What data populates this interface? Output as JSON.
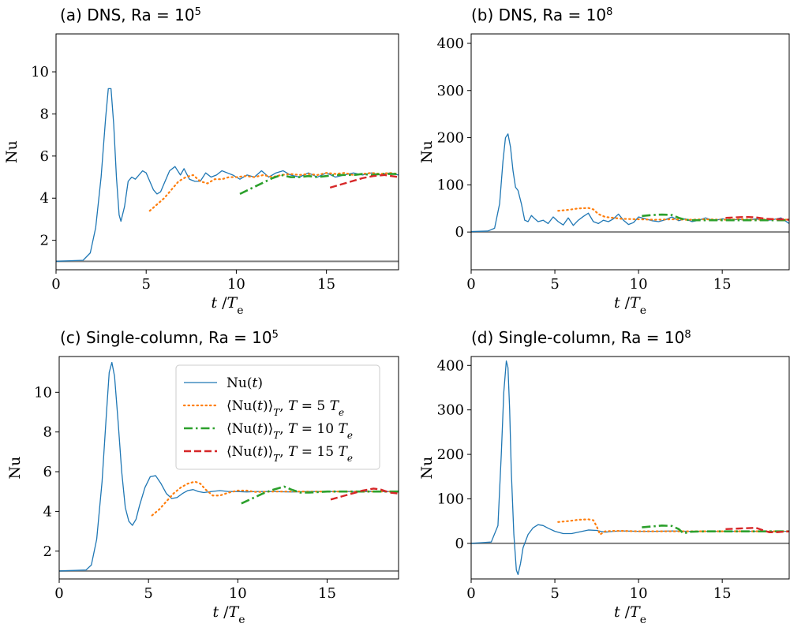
{
  "chart_data": [
    {
      "panel": "a",
      "type": "line",
      "title": "(a) DNS, Ra = 10",
      "title_sup": "5",
      "xlabel_main": "t",
      "xlabel_unit": "/T",
      "xlabel_sub": "e",
      "ylabel": "Nu",
      "xlim": [
        0,
        19
      ],
      "ylim": [
        0.6,
        11.8
      ],
      "xticks": [
        0,
        5,
        10,
        15
      ],
      "yticks": [
        2,
        4,
        6,
        8,
        10
      ],
      "baseline": 1,
      "series": [
        {
          "key": "nu",
          "color": "#1f77b4",
          "style": "solid",
          "x": [
            0,
            1.5,
            1.9,
            2.2,
            2.5,
            2.75,
            2.9,
            3.05,
            3.2,
            3.35,
            3.5,
            3.6,
            3.8,
            4.0,
            4.2,
            4.4,
            4.6,
            4.8,
            5.0,
            5.2,
            5.4,
            5.6,
            5.8,
            6.0,
            6.3,
            6.6,
            6.9,
            7.1,
            7.4,
            7.7,
            8.0,
            8.3,
            8.6,
            8.9,
            9.2,
            9.5,
            9.8,
            10.2,
            10.6,
            11.0,
            11.4,
            11.8,
            12.2,
            12.6,
            13.0,
            13.5,
            14.0,
            14.5,
            15.0,
            15.5,
            16.0,
            16.5,
            17.0,
            17.5,
            18.0,
            18.5,
            19.0
          ],
          "y": [
            1.0,
            1.05,
            1.4,
            2.6,
            5.0,
            7.8,
            9.2,
            9.2,
            7.5,
            5.0,
            3.2,
            2.9,
            3.6,
            4.8,
            5.0,
            4.9,
            5.1,
            5.3,
            5.2,
            4.8,
            4.4,
            4.2,
            4.3,
            4.7,
            5.3,
            5.5,
            5.1,
            5.4,
            4.9,
            4.8,
            4.8,
            5.2,
            5.0,
            5.1,
            5.3,
            5.2,
            5.1,
            4.9,
            5.1,
            5.0,
            5.3,
            5.0,
            5.2,
            5.3,
            5.1,
            5.0,
            5.2,
            5.0,
            5.2,
            5.0,
            5.1,
            5.2,
            5.1,
            5.2,
            5.1,
            5.2,
            5.1
          ]
        },
        {
          "key": "avg5",
          "color": "#ff7f0e",
          "style": "dotted",
          "x": [
            5.2,
            5.6,
            6.0,
            6.4,
            6.8,
            7.2,
            7.6,
            8.0,
            8.4,
            8.8,
            9.2,
            9.6,
            10.0,
            10.5,
            11.0,
            11.5,
            12.0,
            12.5,
            13.0,
            13.5,
            14.0,
            14.5,
            15.0,
            15.5,
            16.0,
            16.5,
            17.0,
            17.5,
            18.0,
            18.5,
            19.0
          ],
          "y": [
            3.4,
            3.7,
            4.0,
            4.4,
            4.8,
            5.0,
            5.1,
            4.8,
            4.7,
            4.9,
            4.9,
            5.0,
            5.0,
            5.05,
            5.0,
            5.1,
            5.0,
            5.1,
            5.15,
            5.1,
            5.15,
            5.1,
            5.2,
            5.15,
            5.2,
            5.1,
            5.15,
            5.2,
            5.15,
            5.2,
            5.15
          ]
        },
        {
          "key": "avg10",
          "color": "#2ca02c",
          "style": "dashdot",
          "x": [
            10.2,
            10.8,
            11.4,
            12.0,
            12.5,
            13.0,
            13.5,
            14.0,
            14.5,
            15.0,
            15.5,
            16.0,
            16.5,
            17.0,
            17.5,
            18.0,
            18.5,
            19.0
          ],
          "y": [
            4.2,
            4.45,
            4.7,
            4.95,
            5.1,
            5.0,
            5.0,
            5.05,
            5.0,
            5.05,
            5.1,
            5.1,
            5.1,
            5.15,
            5.1,
            5.15,
            5.15,
            5.15
          ]
        },
        {
          "key": "avg15",
          "color": "#d62728",
          "style": "dashed",
          "x": [
            15.2,
            15.8,
            16.4,
            17.0,
            17.6,
            18.2,
            18.6,
            19.0
          ],
          "y": [
            4.5,
            4.65,
            4.8,
            4.95,
            5.05,
            5.1,
            5.05,
            5.0
          ]
        }
      ]
    },
    {
      "panel": "b",
      "type": "line",
      "title": "(b) DNS, Ra = 10",
      "title_sup": "8",
      "xlabel_main": "t",
      "xlabel_unit": "/T",
      "xlabel_sub": "e",
      "ylabel": "Nu",
      "xlim": [
        0,
        19
      ],
      "ylim": [
        -80,
        420
      ],
      "xticks": [
        0,
        5,
        10,
        15
      ],
      "yticks": [
        0,
        100,
        200,
        300,
        400
      ],
      "baseline": 0,
      "series": [
        {
          "key": "nu",
          "color": "#1f77b4",
          "style": "solid",
          "x": [
            0,
            1.0,
            1.4,
            1.7,
            1.9,
            2.05,
            2.2,
            2.35,
            2.5,
            2.65,
            2.8,
            3.0,
            3.2,
            3.4,
            3.6,
            3.8,
            4.0,
            4.3,
            4.6,
            4.9,
            5.2,
            5.5,
            5.8,
            6.1,
            6.4,
            6.7,
            7.0,
            7.3,
            7.6,
            7.9,
            8.2,
            8.5,
            8.8,
            9.1,
            9.4,
            9.7,
            10.0,
            10.4,
            10.8,
            11.2,
            11.6,
            12.0,
            12.4,
            12.8,
            13.2,
            13.6,
            14.0,
            14.5,
            15.0,
            15.5,
            16.0,
            16.5,
            17.0,
            17.5,
            18.0,
            18.5,
            19.0
          ],
          "y": [
            1,
            2,
            8,
            60,
            150,
            200,
            208,
            180,
            130,
            95,
            88,
            60,
            25,
            22,
            35,
            28,
            22,
            25,
            18,
            32,
            22,
            15,
            30,
            14,
            25,
            33,
            40,
            22,
            18,
            25,
            22,
            28,
            38,
            25,
            16,
            20,
            32,
            28,
            24,
            22,
            26,
            32,
            24,
            28,
            22,
            25,
            30,
            24,
            28,
            25,
            27,
            24,
            28,
            24,
            26,
            30,
            18
          ]
        },
        {
          "key": "avg5",
          "color": "#ff7f0e",
          "style": "dotted",
          "x": [
            5.2,
            5.8,
            6.4,
            7.0,
            7.3,
            7.6,
            8.0,
            8.5,
            9.0,
            10.0,
            11.0,
            12.0,
            13.0,
            14.0,
            15.0,
            16.0,
            17.0,
            18.0,
            19.0
          ],
          "y": [
            45,
            47,
            50,
            51,
            48,
            38,
            32,
            30,
            28,
            27,
            26,
            27,
            26,
            27,
            26,
            27,
            26,
            27,
            26
          ]
        },
        {
          "key": "avg10",
          "color": "#2ca02c",
          "style": "dashdot",
          "x": [
            10.2,
            10.8,
            11.4,
            12.0,
            12.4,
            12.8,
            13.2,
            14.0,
            15.0,
            16.0,
            17.0,
            18.0,
            19.0
          ],
          "y": [
            34,
            36,
            37,
            36,
            30,
            26,
            25,
            25,
            25,
            25,
            25,
            25,
            25
          ]
        },
        {
          "key": "avg15",
          "color": "#d62728",
          "style": "dashed",
          "x": [
            15.2,
            15.8,
            16.4,
            17.0,
            17.6,
            18.2,
            18.6,
            19.0
          ],
          "y": [
            30,
            31,
            32,
            31,
            28,
            27,
            27,
            26
          ]
        }
      ]
    },
    {
      "panel": "c",
      "type": "line",
      "title": "(c) Single-column, Ra = 10",
      "title_sup": "5",
      "xlabel_main": "t",
      "xlabel_unit": "/T",
      "xlabel_sub": "e",
      "ylabel": "Nu",
      "xlim": [
        0,
        19
      ],
      "ylim": [
        0.6,
        11.8
      ],
      "xticks": [
        0,
        5,
        10,
        15
      ],
      "yticks": [
        2,
        4,
        6,
        8,
        10
      ],
      "baseline": 1,
      "series": [
        {
          "key": "nu",
          "color": "#1f77b4",
          "style": "solid",
          "x": [
            0,
            1.5,
            1.8,
            2.1,
            2.4,
            2.65,
            2.8,
            2.95,
            3.1,
            3.3,
            3.5,
            3.7,
            3.9,
            4.1,
            4.3,
            4.5,
            4.8,
            5.1,
            5.4,
            5.7,
            6.0,
            6.3,
            6.6,
            6.9,
            7.2,
            7.5,
            7.8,
            8.1,
            8.5,
            9.0,
            9.5,
            10.0,
            10.5,
            11.0,
            11.5,
            12.0,
            13.0,
            14.0,
            15.0,
            16.0,
            17.0,
            18.0,
            19.0
          ],
          "y": [
            1.0,
            1.05,
            1.3,
            2.6,
            5.5,
            9.0,
            11.0,
            11.5,
            10.8,
            8.5,
            6.0,
            4.2,
            3.5,
            3.3,
            3.6,
            4.3,
            5.2,
            5.75,
            5.8,
            5.4,
            4.9,
            4.65,
            4.7,
            4.9,
            5.05,
            5.1,
            5.0,
            4.95,
            5.0,
            5.05,
            5.0,
            5.0,
            4.98,
            5.0,
            5.0,
            5.0,
            4.98,
            5.0,
            5.0,
            5.0,
            5.0,
            5.0,
            5.0
          ]
        },
        {
          "key": "avg5",
          "color": "#ff7f0e",
          "style": "dotted",
          "x": [
            5.2,
            5.6,
            6.0,
            6.4,
            6.8,
            7.2,
            7.6,
            7.9,
            8.2,
            8.6,
            9.0,
            9.5,
            10.0,
            10.5,
            11.0,
            12.0,
            13.0,
            14.0,
            15.0,
            16.0,
            17.0,
            18.0,
            19.0
          ],
          "y": [
            3.8,
            4.1,
            4.5,
            4.9,
            5.2,
            5.4,
            5.5,
            5.4,
            5.1,
            4.8,
            4.8,
            4.95,
            5.05,
            5.05,
            4.98,
            5.0,
            5.0,
            5.0,
            5.0,
            5.0,
            5.0,
            5.0,
            5.0
          ]
        },
        {
          "key": "avg10",
          "color": "#2ca02c",
          "style": "dashdot",
          "x": [
            10.2,
            10.8,
            11.4,
            12.0,
            12.6,
            13.0,
            13.5,
            14.0,
            15.0,
            16.0,
            17.0,
            18.0,
            19.0
          ],
          "y": [
            4.4,
            4.65,
            4.9,
            5.1,
            5.25,
            5.1,
            4.95,
            4.95,
            5.0,
            5.0,
            5.0,
            5.0,
            5.0
          ]
        },
        {
          "key": "avg15",
          "color": "#d62728",
          "style": "dashed",
          "x": [
            15.2,
            15.8,
            16.4,
            17.0,
            17.6,
            18.0,
            18.5,
            19.0
          ],
          "y": [
            4.6,
            4.75,
            4.9,
            5.05,
            5.15,
            5.1,
            4.95,
            4.9
          ]
        }
      ]
    },
    {
      "panel": "d",
      "type": "line",
      "title": "(d) Single-column, Ra = 10",
      "title_sup": "8",
      "xlabel_main": "t",
      "xlabel_unit": "/T",
      "xlabel_sub": "e",
      "ylabel": "Nu",
      "xlim": [
        0,
        19
      ],
      "ylim": [
        -80,
        420
      ],
      "xticks": [
        0,
        5,
        10,
        15
      ],
      "yticks": [
        0,
        100,
        200,
        300,
        400
      ],
      "baseline": 0,
      "series": [
        {
          "key": "nu",
          "color": "#1f77b4",
          "style": "solid",
          "x": [
            0,
            1.2,
            1.6,
            1.8,
            1.95,
            2.1,
            2.2,
            2.3,
            2.4,
            2.55,
            2.7,
            2.8,
            2.95,
            3.1,
            3.4,
            3.7,
            4.0,
            4.3,
            4.6,
            5.0,
            5.5,
            6.0,
            6.5,
            7.0,
            7.5,
            8.0,
            8.5,
            9.0,
            10.0,
            11.0,
            12.0,
            13.0,
            14.0,
            15.0,
            16.0,
            17.0,
            18.0,
            19.0
          ],
          "y": [
            0,
            3,
            40,
            200,
            340,
            410,
            395,
            300,
            160,
            20,
            -60,
            -70,
            -45,
            -10,
            20,
            35,
            42,
            40,
            34,
            27,
            22,
            22,
            26,
            30,
            29,
            25,
            27,
            28,
            27,
            27,
            28,
            27,
            27,
            27,
            27,
            27,
            27,
            27
          ]
        },
        {
          "key": "avg5",
          "color": "#ff7f0e",
          "style": "dotted",
          "x": [
            5.2,
            5.8,
            6.4,
            7.0,
            7.3,
            7.5,
            7.7,
            8.0,
            8.5,
            9.0,
            10.0,
            11.0,
            12.0,
            13.0,
            14.0,
            15.0,
            16.0,
            17.0,
            18.0,
            19.0
          ],
          "y": [
            48,
            50,
            53,
            54,
            52,
            38,
            20,
            27,
            28,
            28,
            27,
            27,
            27,
            27,
            27,
            27,
            27,
            27,
            27,
            27
          ]
        },
        {
          "key": "avg10",
          "color": "#2ca02c",
          "style": "dashdot",
          "x": [
            10.2,
            10.8,
            11.4,
            12.0,
            12.4,
            12.7,
            13.0,
            14.0,
            15.0,
            16.0,
            17.0,
            18.0,
            19.0
          ],
          "y": [
            36,
            38,
            40,
            39,
            32,
            22,
            26,
            27,
            27,
            27,
            27,
            27,
            27
          ]
        },
        {
          "key": "avg15",
          "color": "#d62728",
          "style": "dashed",
          "x": [
            15.2,
            15.8,
            16.4,
            17.0,
            17.4,
            17.8,
            18.2,
            18.6,
            19.0
          ],
          "y": [
            32,
            33,
            34,
            35,
            30,
            25,
            25,
            26,
            27
          ]
        }
      ]
    }
  ],
  "legend": {
    "panel": "c",
    "entries": [
      {
        "key": "nu",
        "prefix": "Nu(",
        "var": "t",
        "suffix": ")",
        "T_value": ""
      },
      {
        "key": "avg5",
        "prefix": "⟨Nu(",
        "var": "t",
        "suffix": ")⟩",
        "T_value": "5"
      },
      {
        "key": "avg10",
        "prefix": "⟨Nu(",
        "var": "t",
        "suffix": ")⟩",
        "T_value": "10"
      },
      {
        "key": "avg15",
        "prefix": "⟨Nu(",
        "var": "t",
        "suffix": ")⟩",
        "T_value": "15"
      }
    ],
    "T_symbol": "T",
    "equals": "=",
    "Te_main": "T",
    "Te_sub": "e"
  },
  "colors": {
    "baseline": "#7f7f7f",
    "nu": "#1f77b4",
    "avg5": "#ff7f0e",
    "avg10": "#2ca02c",
    "avg15": "#d62728"
  }
}
